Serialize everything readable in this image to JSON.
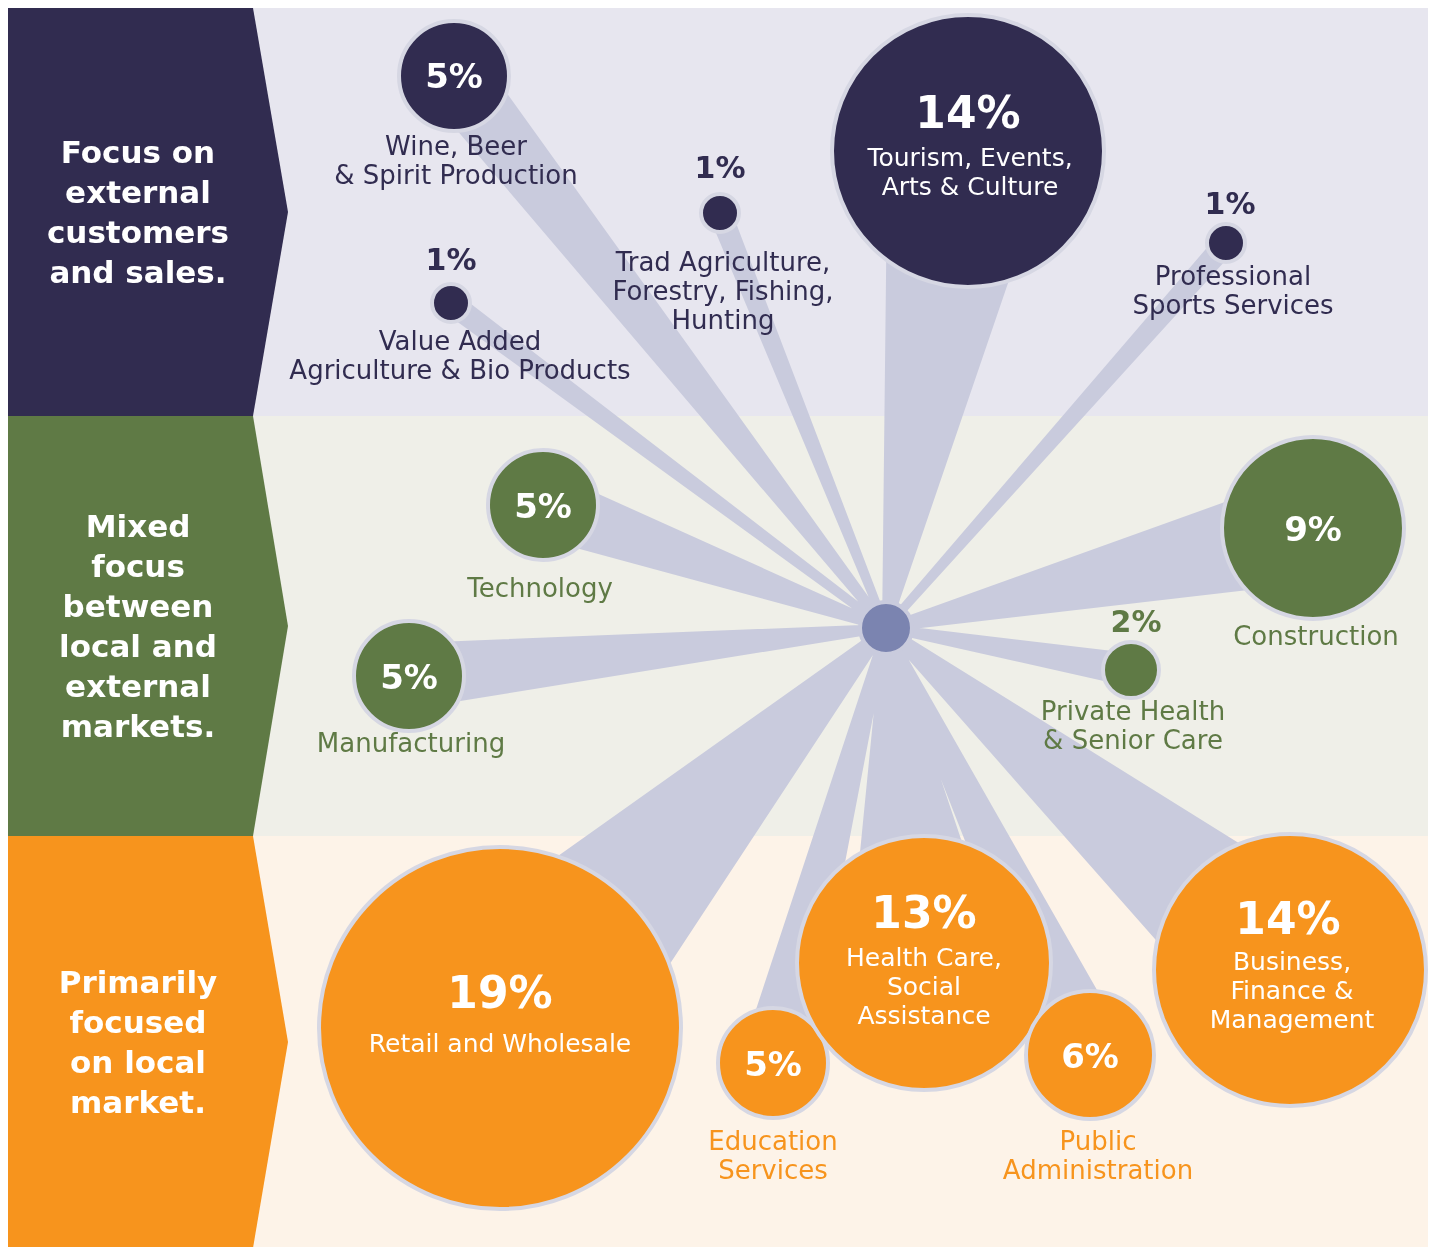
{
  "chart_data": {
    "type": "other",
    "categories": [
      "Wine, Beer & Spirit Production",
      "Value Added Agriculture & Bio Products",
      "Trad Agriculture, Forestry, Fishing, Hunting",
      "Tourism, Events, Arts & Culture",
      "Professional Sports Services",
      "Technology",
      "Manufacturing",
      "Construction",
      "Private Health & Senior Care",
      "Retail and Wholesale",
      "Education Services",
      "Health Care, Social Assistance",
      "Public Administration",
      "Business, Finance & Management"
    ],
    "values": [
      5,
      1,
      1,
      14,
      1,
      5,
      5,
      9,
      2,
      19,
      5,
      13,
      6,
      14
    ],
    "value_labels": [
      "5%",
      "1%",
      "1%",
      "14%",
      "1%",
      "5%",
      "5%",
      "9%",
      "2%",
      "19%",
      "5%",
      "13%",
      "6%",
      "14%"
    ],
    "colors": [
      "#312c50",
      "#312c50",
      "#312c50",
      "#312c50",
      "#312c50",
      "#5f7a45",
      "#5f7a45",
      "#5f7a45",
      "#5f7a45",
      "#f7941d",
      "#f7941d",
      "#f7941d",
      "#f7941d",
      "#f7941d"
    ],
    "annotations": [
      "Focus on external customers and sales.",
      "Mixed focus between local and external markets.",
      "Primarily focused on local market."
    ]
  }
}
